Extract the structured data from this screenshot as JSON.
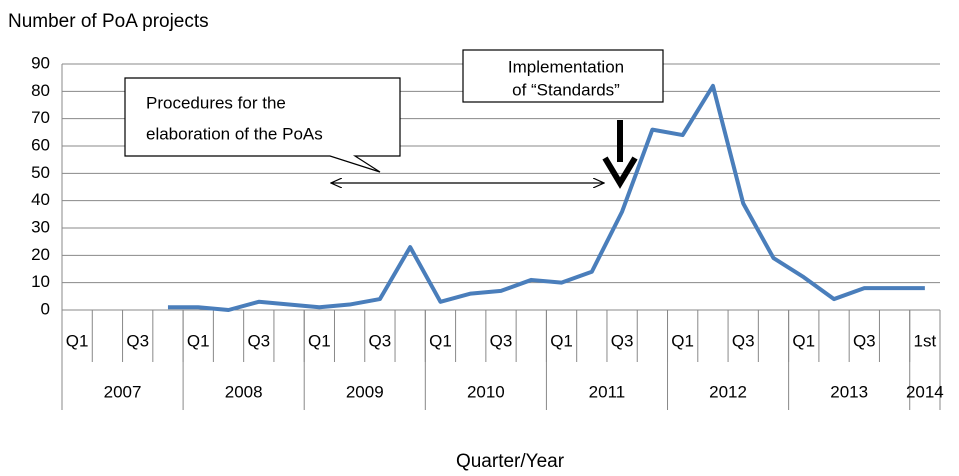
{
  "chart_data": {
    "type": "line",
    "y_label": "Number of PoA projects",
    "x_label": "Quarter/Year",
    "categories": [
      "Q1",
      null,
      "Q3",
      null,
      "Q1",
      null,
      "Q3",
      null,
      "Q1",
      null,
      "Q3",
      null,
      "Q1",
      null,
      "Q3",
      null,
      "Q1",
      null,
      "Q3",
      null,
      "Q1",
      null,
      "Q3",
      null,
      "Q1",
      null,
      "Q3",
      null,
      "1st"
    ],
    "x_groups": [
      "2007",
      "2008",
      "2009",
      "2010",
      "2011",
      "2012",
      "2013",
      "2014"
    ],
    "series": [
      {
        "name": "PoA projects",
        "color": "#4a7ebb",
        "values": [
          null,
          null,
          null,
          1,
          1,
          0,
          3,
          2,
          1,
          2,
          4,
          23,
          3,
          6,
          7,
          11,
          10,
          14,
          36,
          66,
          64,
          82,
          39,
          19,
          12,
          4,
          8,
          8,
          8
        ]
      }
    ],
    "ylim": [
      0,
      90
    ],
    "yticks": [
      0,
      10,
      20,
      30,
      40,
      50,
      60,
      70,
      80,
      90
    ],
    "grid": true,
    "annotations": [
      {
        "lines": [
          "Procedures for the",
          "elaboration of the PoAs"
        ]
      },
      {
        "lines": [
          "Implementation",
          "of “Standards”"
        ]
      }
    ]
  }
}
